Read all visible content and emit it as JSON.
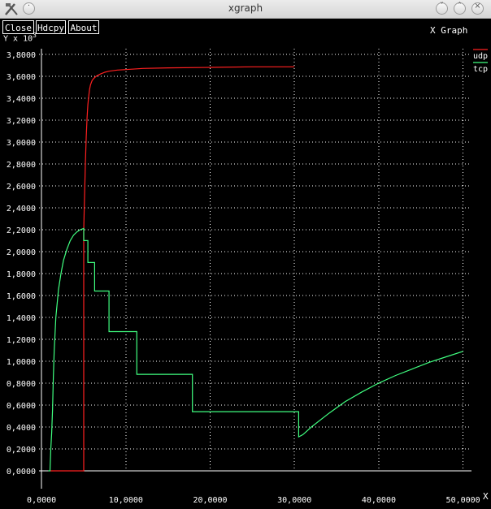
{
  "window": {
    "title": "xgraph"
  },
  "buttons": {
    "close": "Close",
    "hdcpy": "Hdcpy",
    "about": "About"
  },
  "chart_data": {
    "type": "line",
    "title": "X Graph",
    "ylabel": "Y x 10^3",
    "ylabel_text": "Y x 10",
    "ylabel_exp": "3",
    "xlabel": "X",
    "xlim": [
      -300,
      51000
    ],
    "ylim": [
      0,
      3.85
    ],
    "xticks": [
      0,
      10000,
      20000,
      30000,
      40000,
      50000
    ],
    "xtick_labels": [
      "0,0000",
      "10,0000",
      "20,0000",
      "30,0000",
      "40,0000",
      "50,0000"
    ],
    "yticks": [
      0,
      0.2,
      0.4,
      0.6,
      0.8,
      1.0,
      1.2,
      1.4,
      1.6,
      1.8,
      2.0,
      2.2,
      2.4,
      2.6,
      2.8,
      3.0,
      3.2,
      3.4,
      3.6,
      3.8
    ],
    "ytick_labels": [
      "0,0000",
      "0,2000",
      "0,4000",
      "0,6000",
      "0,8000",
      "1,0000",
      "1,2000",
      "1,4000",
      "1,6000",
      "1,8000",
      "2,0000",
      "2,2000",
      "2,4000",
      "2,6000",
      "2,8000",
      "3,0000",
      "3,2000",
      "3,4000",
      "3,6000",
      "3,8000"
    ],
    "grid": true,
    "legend": "top-right",
    "series": [
      {
        "name": "udp",
        "color": "#ff2020",
        "x": [
          1000,
          5000,
          5000,
          5100,
          5200,
          5300,
          5400,
          5500,
          5600,
          5700,
          5800,
          6000,
          6200,
          6500,
          7000,
          7500,
          8000,
          9000,
          10000,
          12000,
          15000,
          20000,
          25000,
          30000
        ],
        "y": [
          0,
          0,
          2.2,
          2.5,
          2.8,
          3.05,
          3.22,
          3.34,
          3.42,
          3.48,
          3.52,
          3.56,
          3.58,
          3.6,
          3.62,
          3.635,
          3.645,
          3.655,
          3.66,
          3.67,
          3.675,
          3.68,
          3.685,
          3.685
        ]
      },
      {
        "name": "tcp",
        "color": "#40ff80",
        "x": [
          800,
          1000,
          1100,
          1200,
          1300,
          1400,
          1500,
          1700,
          2000,
          2300,
          2600,
          3000,
          3400,
          3800,
          4200,
          4600,
          5000,
          5000,
          5500,
          5500,
          6300,
          6300,
          7000,
          7000,
          8000,
          8000,
          8300,
          8300,
          11300,
          11300,
          17900,
          17900,
          30500,
          30500,
          31000,
          32000,
          34000,
          36000,
          38000,
          40000,
          42000,
          44000,
          46000,
          48000,
          50000
        ],
        "y": [
          0,
          0,
          0.2,
          0.35,
          0.55,
          0.85,
          1.1,
          1.4,
          1.65,
          1.8,
          1.92,
          2.02,
          2.1,
          2.15,
          2.18,
          2.2,
          2.21,
          2.1,
          2.1,
          1.9,
          1.9,
          1.64,
          1.64,
          1.64,
          1.64,
          1.27,
          1.27,
          1.27,
          1.27,
          0.88,
          0.88,
          0.54,
          0.54,
          0.31,
          0.33,
          0.4,
          0.52,
          0.63,
          0.72,
          0.8,
          0.87,
          0.93,
          0.99,
          1.04,
          1.09
        ]
      }
    ]
  }
}
